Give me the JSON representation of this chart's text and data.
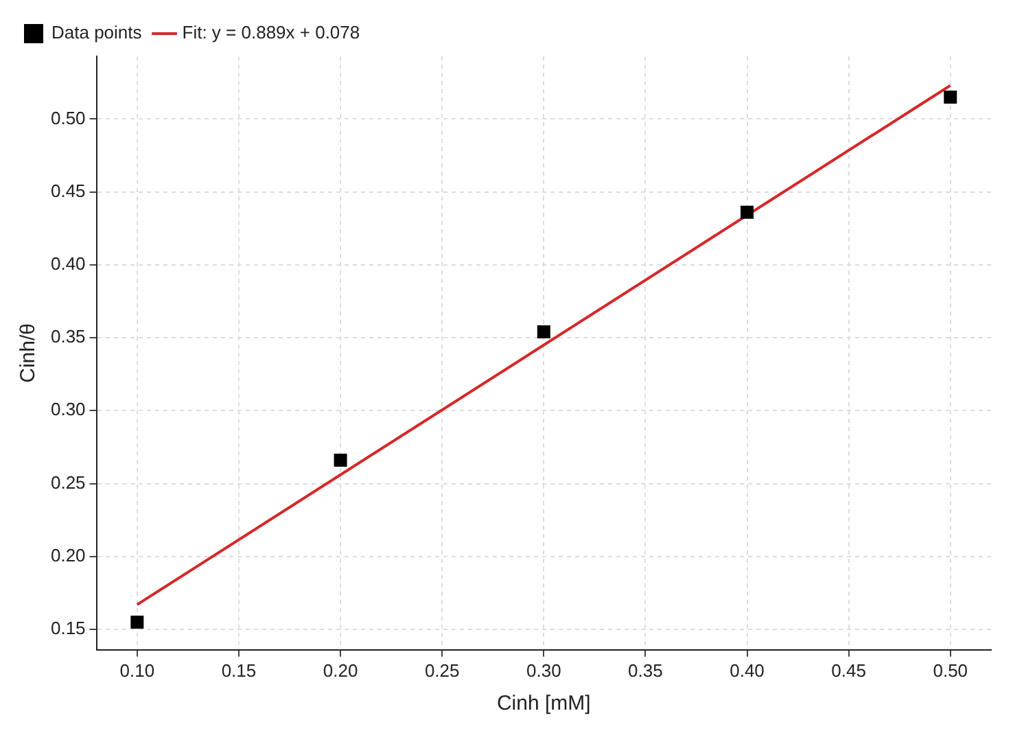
{
  "chart_data": {
    "type": "scatter",
    "xlabel": "Cinh [mM]",
    "ylabel": "Cinh/θ",
    "xlim": [
      0.08,
      0.52
    ],
    "ylim": [
      0.136,
      0.543
    ],
    "xticks": [
      {
        "value": 0.1,
        "label": "0.10"
      },
      {
        "value": 0.15,
        "label": "0.15"
      },
      {
        "value": 0.2,
        "label": "0.20"
      },
      {
        "value": 0.25,
        "label": "0.25"
      },
      {
        "value": 0.3,
        "label": "0.30"
      },
      {
        "value": 0.35,
        "label": "0.35"
      },
      {
        "value": 0.4,
        "label": "0.40"
      },
      {
        "value": 0.45,
        "label": "0.45"
      },
      {
        "value": 0.5,
        "label": "0.50"
      }
    ],
    "yticks": [
      {
        "value": 0.15,
        "label": "0.15"
      },
      {
        "value": 0.2,
        "label": "0.20"
      },
      {
        "value": 0.25,
        "label": "0.25"
      },
      {
        "value": 0.3,
        "label": "0.30"
      },
      {
        "value": 0.35,
        "label": "0.35"
      },
      {
        "value": 0.4,
        "label": "0.40"
      },
      {
        "value": 0.45,
        "label": "0.45"
      },
      {
        "value": 0.5,
        "label": "0.50"
      }
    ],
    "grid": true,
    "legend": "top left",
    "series": [
      {
        "name": "Data points",
        "type": "scatter",
        "marker": "square",
        "color": "#000000",
        "x": [
          0.1,
          0.2,
          0.3,
          0.4,
          0.5
        ],
        "values": [
          0.155,
          0.266,
          0.354,
          0.436,
          0.515
        ]
      },
      {
        "name": "Fit: y = 0.889x + 0.078",
        "type": "line",
        "marker": "none",
        "line_style": "solid",
        "color": "#d62728",
        "x": [
          0.1,
          0.5
        ],
        "values": [
          0.167,
          0.523
        ]
      }
    ]
  }
}
